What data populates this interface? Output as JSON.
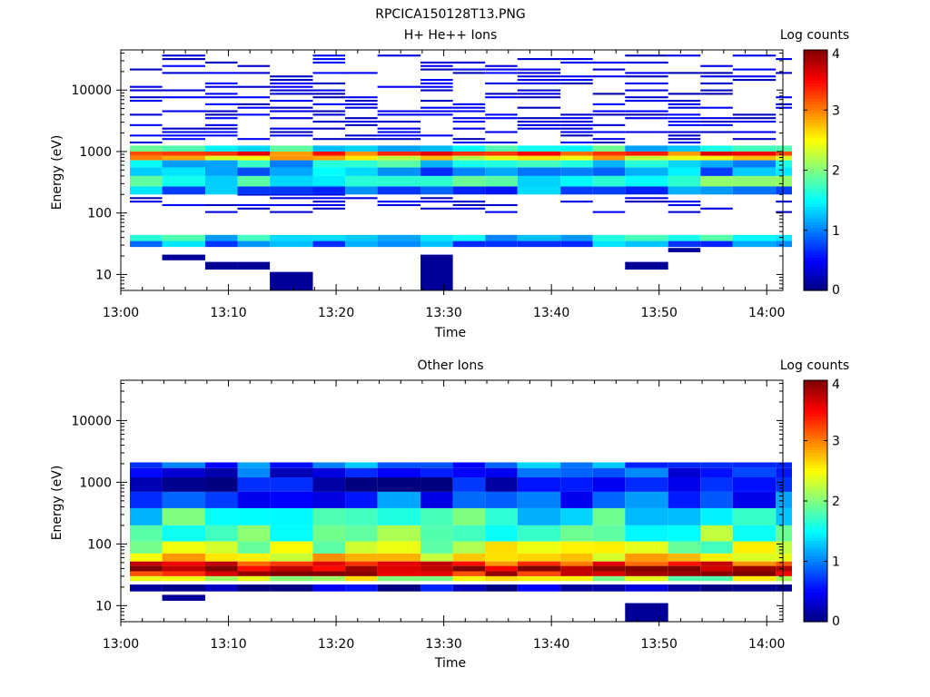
{
  "figure": {
    "title": "RPCICA150128T13.PNG"
  },
  "chart_data": [
    {
      "type": "heatmap",
      "title": "H+ He++ Ions",
      "xlabel": "Time",
      "ylabel": "Energy (eV)",
      "colorbar_label": "Log counts",
      "x_tick_labels": [
        "13:00",
        "13:10",
        "13:20",
        "13:30",
        "13:40",
        "13:50",
        "14:00"
      ],
      "y_tick_labels": [
        "10",
        "100",
        "1000",
        "10000"
      ],
      "y_scale": "log",
      "ylim": [
        5.5,
        45000
      ],
      "xlim": [
        "13:00",
        "14:01:30"
      ],
      "colorbar_ticks": [
        "0",
        "1",
        "2",
        "3",
        "4"
      ],
      "colorbar_range": [
        0,
        4
      ],
      "time_columns": [
        "13:00",
        "13:03",
        "13:07",
        "13:10",
        "13:13",
        "13:17",
        "13:20",
        "13:23",
        "13:27",
        "13:30",
        "13:33",
        "13:36",
        "13:40",
        "13:43",
        "13:46",
        "13:50",
        "13:53",
        "13:56",
        "14:00"
      ],
      "bands": [
        {
          "e_low": 1000,
          "e_high": 1250,
          "value": 1.5
        },
        {
          "e_low": 850,
          "e_high": 1000,
          "value": 3.2
        },
        {
          "e_low": 720,
          "e_high": 850,
          "value": 2.6
        },
        {
          "e_low": 550,
          "e_high": 720,
          "value": 1.4
        },
        {
          "e_low": 400,
          "e_high": 550,
          "value": 1.1
        },
        {
          "e_low": 270,
          "e_high": 400,
          "value": 1.7
        },
        {
          "e_low": 200,
          "e_high": 270,
          "value": 1.0
        },
        {
          "e_low": 35,
          "e_high": 44,
          "value": 1.4
        },
        {
          "e_low": 28,
          "e_high": 35,
          "value": 1.0
        }
      ],
      "sparse_range": [
        100,
        40000
      ],
      "sparse_value": 0.2,
      "isolated_cells": [
        {
          "col": 4,
          "e_low": 5.5,
          "e_high": 11,
          "value": 0.1
        },
        {
          "col": 8,
          "e_low": 5.5,
          "e_high": 21,
          "value": 0.1
        },
        {
          "col": 2,
          "e_low": 12,
          "e_high": 16,
          "value": 0.1
        },
        {
          "col": 3,
          "e_low": 12,
          "e_high": 16,
          "value": 0.1
        },
        {
          "col": 1,
          "e_low": 17,
          "e_high": 21,
          "value": 0.1
        },
        {
          "col": 14,
          "e_low": 12,
          "e_high": 16,
          "value": 0.1
        },
        {
          "col": 15,
          "e_low": 23,
          "e_high": 27,
          "value": 0.1
        }
      ]
    },
    {
      "type": "heatmap",
      "title": "Other Ions",
      "xlabel": "Time",
      "ylabel": "Energy (eV)",
      "colorbar_label": "Log counts",
      "x_tick_labels": [
        "13:00",
        "13:10",
        "13:20",
        "13:30",
        "13:40",
        "13:50",
        "14:00"
      ],
      "y_tick_labels": [
        "10",
        "100",
        "1000",
        "10000"
      ],
      "y_scale": "log",
      "ylim": [
        5.5,
        45000
      ],
      "xlim": [
        "13:00",
        "14:01:30"
      ],
      "colorbar_ticks": [
        "0",
        "1",
        "2",
        "3",
        "4"
      ],
      "colorbar_range": [
        0,
        4
      ],
      "time_columns": [
        "13:00",
        "13:03",
        "13:07",
        "13:10",
        "13:13",
        "13:17",
        "13:20",
        "13:23",
        "13:27",
        "13:30",
        "13:33",
        "13:36",
        "13:40",
        "13:43",
        "13:46",
        "13:50",
        "13:53",
        "13:56",
        "14:00"
      ],
      "bands": [
        {
          "e_low": 1700,
          "e_high": 2100,
          "value": 0.9
        },
        {
          "e_low": 1200,
          "e_high": 1700,
          "value": 0.6
        },
        {
          "e_low": 700,
          "e_high": 1200,
          "value": 0.3
        },
        {
          "e_low": 380,
          "e_high": 700,
          "value": 0.8
        },
        {
          "e_low": 200,
          "e_high": 380,
          "value": 1.6
        },
        {
          "e_low": 110,
          "e_high": 200,
          "value": 1.9
        },
        {
          "e_low": 70,
          "e_high": 110,
          "value": 2.2
        },
        {
          "e_low": 52,
          "e_high": 70,
          "value": 2.7
        },
        {
          "e_low": 44,
          "e_high": 52,
          "value": 3.3
        },
        {
          "e_low": 36,
          "e_high": 44,
          "value": 3.9
        },
        {
          "e_low": 30,
          "e_high": 36,
          "value": 3.6
        },
        {
          "e_low": 25,
          "e_high": 30,
          "value": 2.2
        },
        {
          "e_low": 17,
          "e_high": 22,
          "value": 0.2
        }
      ],
      "sparse_range": [
        0,
        0
      ],
      "sparse_value": 0.2,
      "isolated_cells": [
        {
          "col": 1,
          "e_low": 12,
          "e_high": 15,
          "value": 0.1
        },
        {
          "col": 14,
          "e_low": 5.5,
          "e_high": 11,
          "value": 0.1
        }
      ]
    }
  ]
}
